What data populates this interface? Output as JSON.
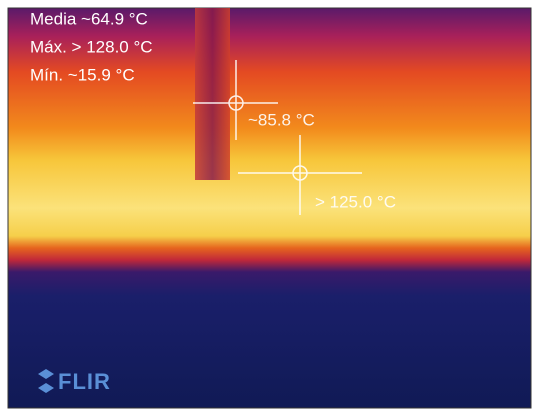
{
  "measurements": {
    "mean": "Media ~64.9 °C",
    "max": "Máx. > 128.0 °C",
    "min": "Mín. ~15.9 °C"
  },
  "spots": [
    {
      "label": "~85.8 °C"
    },
    {
      "label": "> 125.0 °C"
    }
  ],
  "brand": "FLIR"
}
